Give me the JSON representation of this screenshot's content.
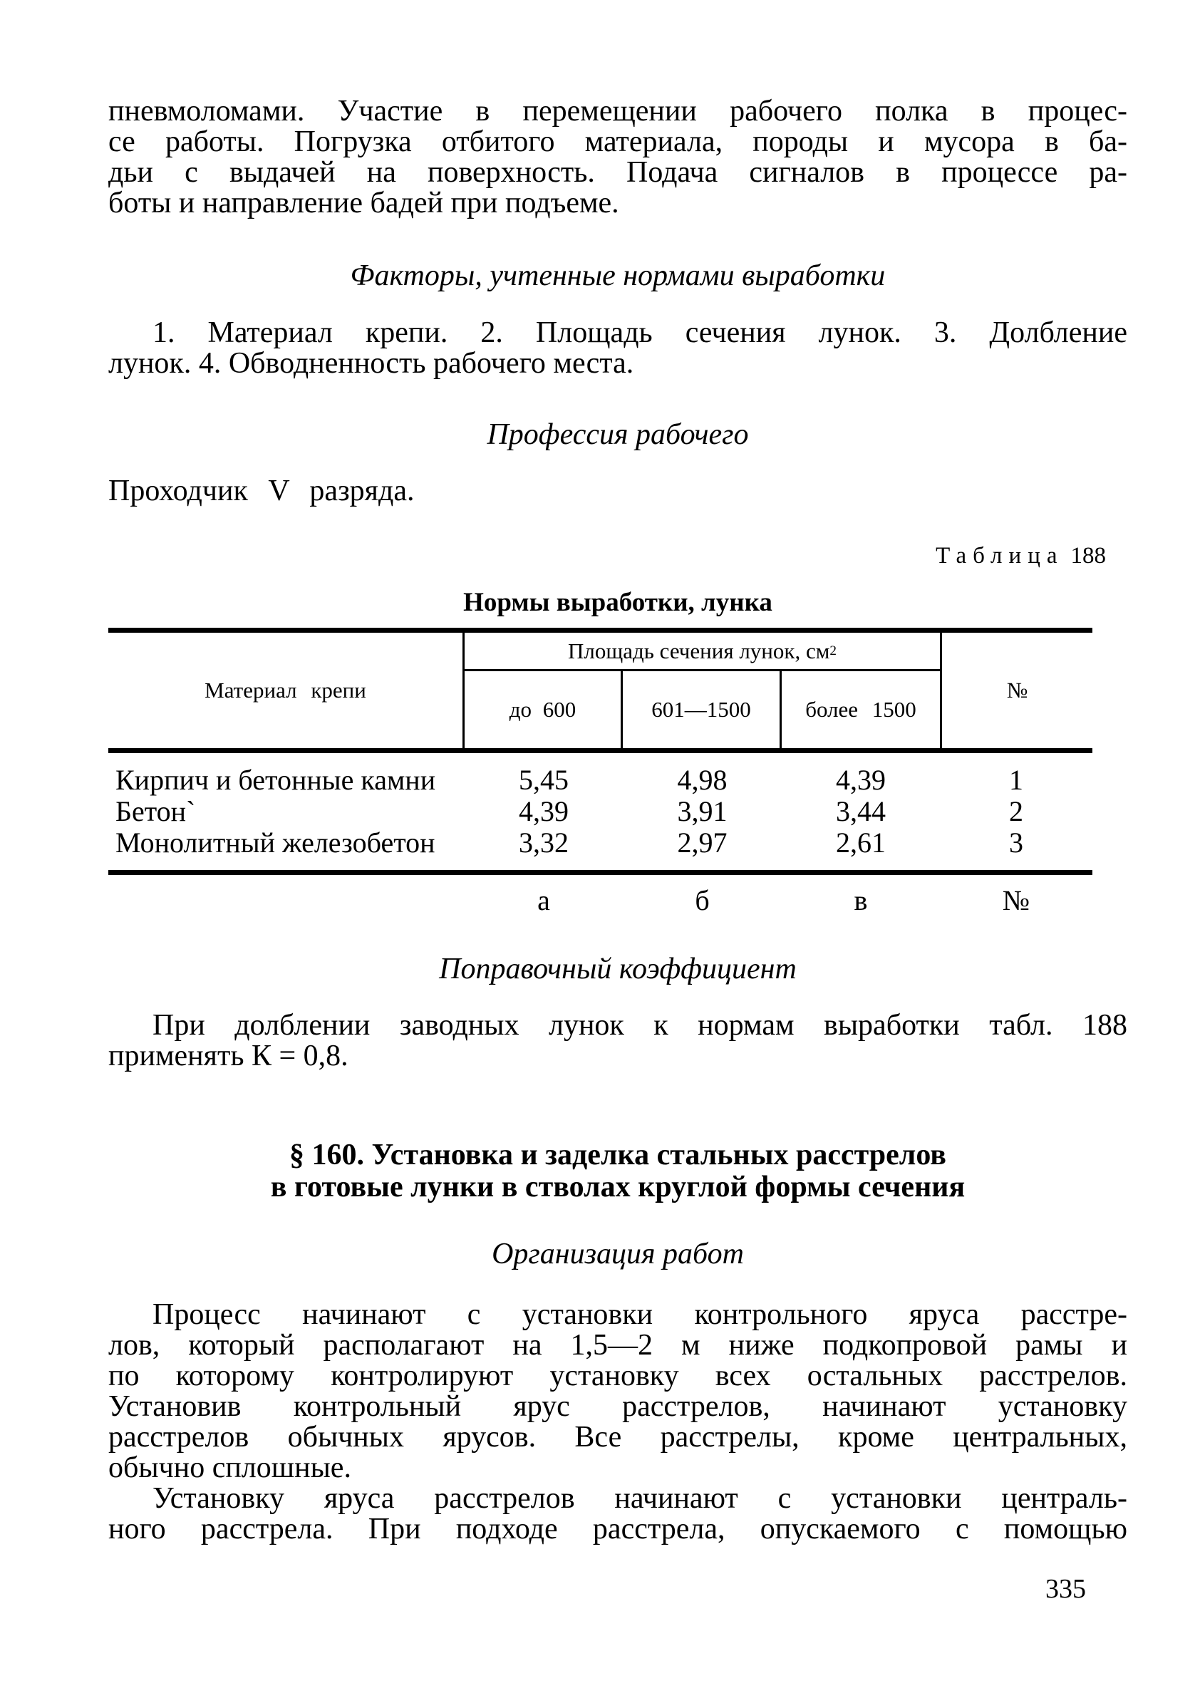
{
  "page": {
    "number": "335"
  },
  "intro_paragraph": {
    "lines": [
      "пневмоломами. Участие в перемещении рабочего полка в процес-",
      "се работы. Погрузка отбитого материала, породы и мусора в ба-",
      "дьи с выдачей на поверхность. Подача сигналов в процессе ра-",
      "боты и направление бадей при подъеме."
    ]
  },
  "factors_section": {
    "heading": "Факторы, учтенные нормами выработки",
    "lines": [
      "1. Материал крепи. 2. Площадь сечения лунок. 3. Долбление",
      "лунок. 4. Обводненность рабочего места."
    ]
  },
  "profession_section": {
    "heading": "Профессия рабочего",
    "text": "Проходчик V разряда."
  },
  "table": {
    "label": "Таблица",
    "label_number": "188",
    "title": "Нормы выработки, лунка",
    "col_material": "Материал крепи",
    "col_area_group": "Площадь сечения лунок, см",
    "col_area_sup": "2",
    "col_area_1": "до 600",
    "col_area_2": "601—1500",
    "col_area_3": "более 1500",
    "col_num": "№",
    "rows": [
      {
        "material": "Кирпич и бетонные камни",
        "v1": "5,45",
        "v2": "4,98",
        "v3": "4,39",
        "num": "1"
      },
      {
        "material": "Бетон`",
        "v1": "4,39",
        "v2": "3,91",
        "v3": "3,44",
        "num": "2"
      },
      {
        "material": "Монолитный железобетон",
        "v1": "3,32",
        "v2": "2,97",
        "v3": "2,61",
        "num": "3"
      }
    ],
    "footer": {
      "a": "а",
      "b": "б",
      "c": "в",
      "num": "№"
    }
  },
  "coefficient_section": {
    "heading": "Поправочный коэффициент",
    "lines": [
      "При долблении заводных лунок к нормам выработки табл. 188",
      "применять К = 0,8."
    ]
  },
  "section_160": {
    "heading_lines": [
      "§ 160. Установка и заделка стальных расстрелов",
      "в готовые лунки в стволах круглой формы сечения"
    ],
    "subheading": "Организация работ",
    "paragraph_1_lines": [
      "Процесс начинают с установки контрольного яруса расстре-",
      "лов, который располагают на 1,5—2 м ниже подкопровой рамы и",
      "по которому контролируют установку всех остальных расстрелов.",
      "Установив контрольный ярус расстрелов, начинают установку",
      "расстрелов обычных ярусов. Все расстрелы, кроме центральных,",
      "обычно сплошные."
    ],
    "paragraph_2_lines": [
      "Установку яруса расстрелов начинают с установки централь-",
      "ного расстрела. При подходе расстрела, опускаемого с помощью"
    ]
  }
}
